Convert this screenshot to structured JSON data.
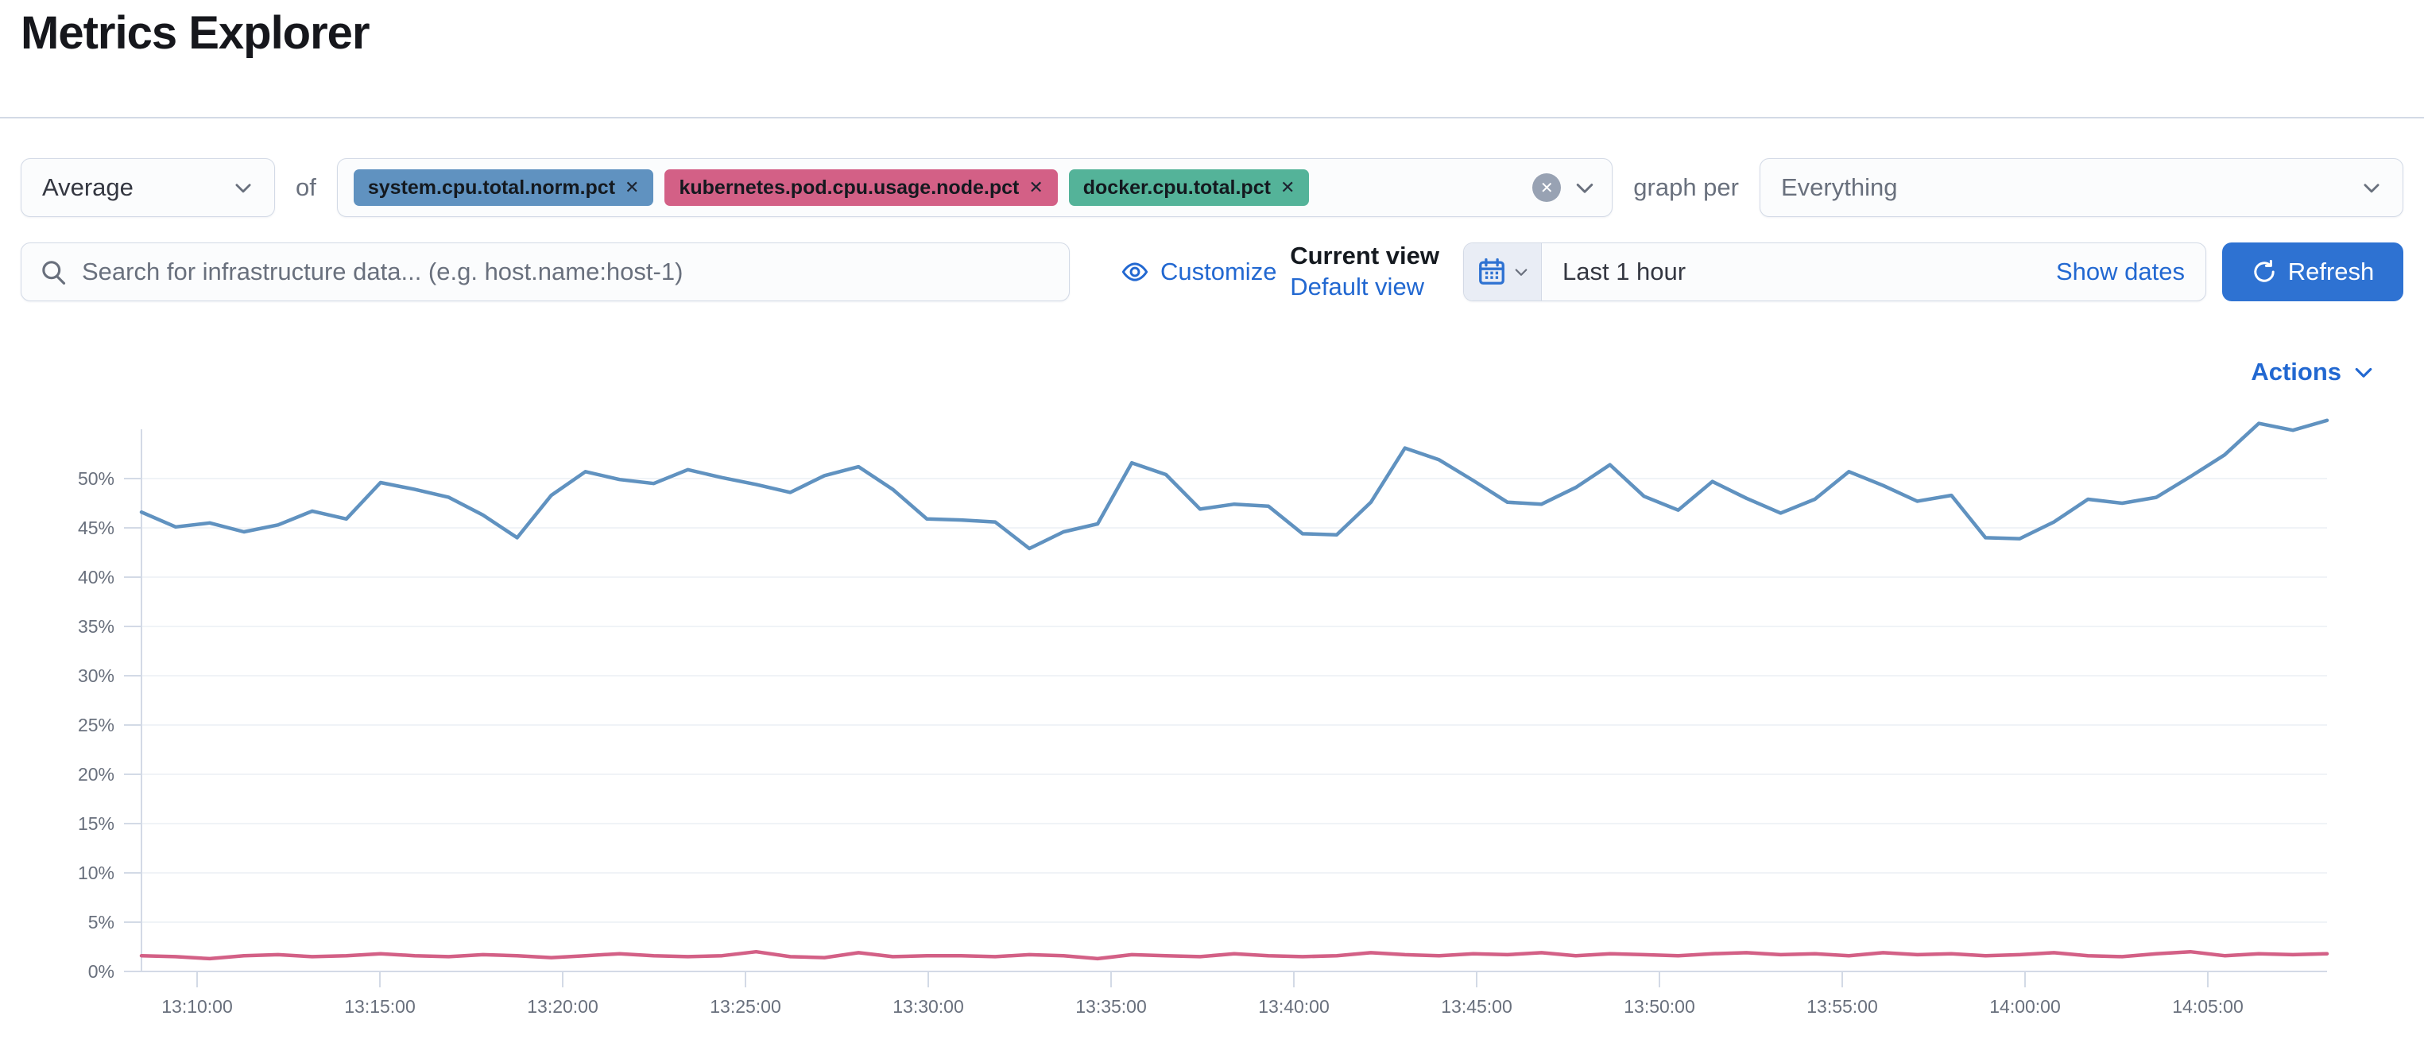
{
  "page": {
    "title": "Metrics Explorer"
  },
  "toolbar": {
    "aggregation": {
      "value": "Average"
    },
    "of_label": "of",
    "metrics": [
      {
        "label": "system.cpu.total.norm.pct",
        "color": "#6092C0"
      },
      {
        "label": "kubernetes.pod.cpu.usage.node.pct",
        "color": "#D36086"
      },
      {
        "label": "docker.cpu.total.pct",
        "color": "#54B399"
      }
    ],
    "remove_icon": "✕",
    "graph_per_label": "graph per",
    "group_by": {
      "value": "Everything"
    }
  },
  "secondbar": {
    "search": {
      "placeholder": "Search for infrastructure data... (e.g. host.name:host-1)"
    },
    "customize_label": "Customize",
    "view_selector": {
      "title": "Current view",
      "link": "Default view"
    },
    "datepicker": {
      "value": "Last 1 hour",
      "show_dates_label": "Show dates"
    },
    "refresh_label": "Refresh"
  },
  "actions_label": "Actions",
  "colors": {
    "primary_button": "#2e72d2",
    "link": "#2268d1",
    "border": "#d3dae6",
    "muted_text": "#69707d",
    "grid_line": "#f0f3f7",
    "axis_line": "#d3dae6"
  },
  "chart_data": {
    "type": "line",
    "title": "",
    "x_axis": {
      "labels": [
        "13:10:00",
        "13:15:00",
        "13:20:00",
        "13:25:00",
        "13:30:00",
        "13:35:00",
        "13:40:00",
        "13:45:00",
        "13:50:00",
        "13:55:00",
        "14:00:00",
        "14:05:00"
      ],
      "interval": "5m",
      "range_start": "13:08:30",
      "range_end": "14:08:20"
    },
    "y_axis": {
      "unit": "%",
      "min": 0,
      "max": 55,
      "tick_values": [
        0,
        5,
        10,
        15,
        20,
        25,
        30,
        35,
        40,
        45,
        50
      ],
      "tick_labels": [
        "0%",
        "5%",
        "10%",
        "15%",
        "20%",
        "25%",
        "30%",
        "35%",
        "40%",
        "45%",
        "50%"
      ]
    },
    "grid": "horizontal",
    "legend": "none",
    "series": [
      {
        "name": "blue-line",
        "color": "#6092C0",
        "values": [
          46.6,
          45.1,
          45.5,
          44.6,
          45.3,
          46.7,
          45.9,
          49.6,
          48.9,
          48.1,
          46.3,
          44.0,
          48.3,
          50.7,
          49.9,
          49.5,
          50.9,
          50.1,
          49.4,
          48.6,
          50.3,
          51.2,
          48.9,
          45.9,
          45.8,
          45.6,
          42.9,
          44.6,
          45.4,
          51.6,
          50.4,
          46.9,
          47.4,
          47.2,
          44.4,
          44.3,
          47.6,
          53.1,
          51.9,
          49.8,
          47.6,
          47.4,
          49.1,
          51.4,
          48.2,
          46.8,
          49.7,
          48.0,
          46.5,
          47.9,
          50.7,
          49.3,
          47.7,
          48.3,
          44.0,
          43.9,
          45.6,
          47.9,
          47.5,
          48.1,
          50.2,
          52.4,
          55.6,
          54.9,
          55.9
        ]
      },
      {
        "name": "pink-line",
        "color": "#D36086",
        "values": [
          1.6,
          1.5,
          1.3,
          1.6,
          1.7,
          1.5,
          1.6,
          1.8,
          1.6,
          1.5,
          1.7,
          1.6,
          1.4,
          1.6,
          1.8,
          1.6,
          1.5,
          1.6,
          2.0,
          1.5,
          1.4,
          1.9,
          1.5,
          1.6,
          1.6,
          1.5,
          1.7,
          1.6,
          1.3,
          1.7,
          1.6,
          1.5,
          1.8,
          1.6,
          1.5,
          1.6,
          1.9,
          1.7,
          1.6,
          1.8,
          1.7,
          1.9,
          1.6,
          1.8,
          1.7,
          1.6,
          1.8,
          1.9,
          1.7,
          1.8,
          1.6,
          1.9,
          1.7,
          1.8,
          1.6,
          1.7,
          1.9,
          1.6,
          1.5,
          1.8,
          2.0,
          1.6,
          1.8,
          1.7,
          1.8
        ]
      }
    ]
  }
}
